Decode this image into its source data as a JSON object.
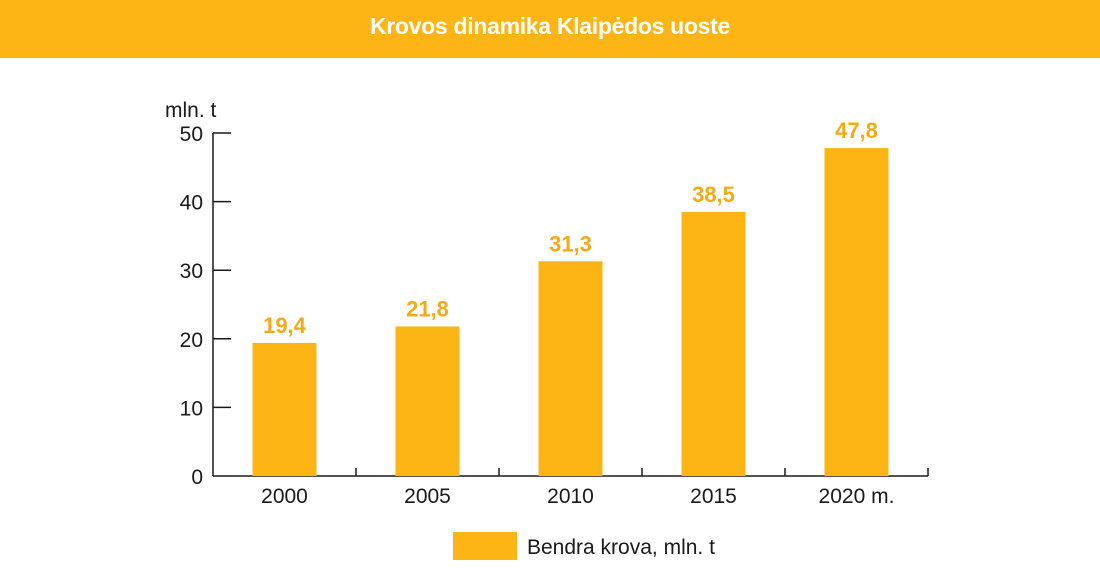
{
  "header": {
    "title": "Krovos dinamika Klaipėdos uoste"
  },
  "colors": {
    "header_bg": "#FDB515",
    "bar": "#FDB515",
    "value_label": "#F5A916",
    "axis": "#1a1a1a"
  },
  "chart_data": {
    "type": "bar",
    "title": "Krovos dinamika Klaipėdos uoste",
    "xlabel": "",
    "ylabel": "mln. t",
    "categories": [
      "2000",
      "2005",
      "2010",
      "2015",
      "2020 m."
    ],
    "values": [
      19.4,
      21.8,
      31.3,
      38.5,
      47.8
    ],
    "value_labels": [
      "19,4",
      "21,8",
      "31,3",
      "38,5",
      "47,8"
    ],
    "ylim": [
      0,
      50
    ],
    "yticks": [
      0,
      10,
      20,
      30,
      40,
      50
    ],
    "grid": false,
    "legend": {
      "position": "bottom",
      "entries": [
        "Bendra krova, mln. t"
      ]
    },
    "series": [
      {
        "name": "Bendra krova, mln. t",
        "values": [
          19.4,
          21.8,
          31.3,
          38.5,
          47.8
        ]
      }
    ]
  }
}
